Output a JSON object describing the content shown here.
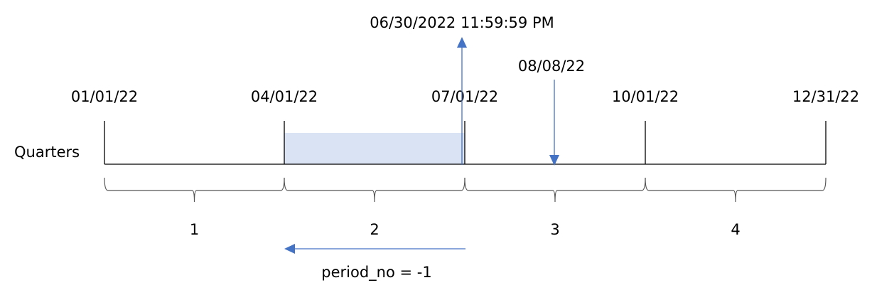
{
  "row_label": "Quarters",
  "dates": [
    "01/01/22",
    "04/01/22",
    "07/01/22",
    "10/01/22",
    "12/31/22"
  ],
  "quarters": [
    "1",
    "2",
    "3",
    "4"
  ],
  "end_label": "06/30/2022 11:59:59 PM",
  "input_label": "08/08/22",
  "period_label": "period_no = -1",
  "colors": {
    "accent": "#4472c4",
    "highlight": "#dae3f3"
  }
}
